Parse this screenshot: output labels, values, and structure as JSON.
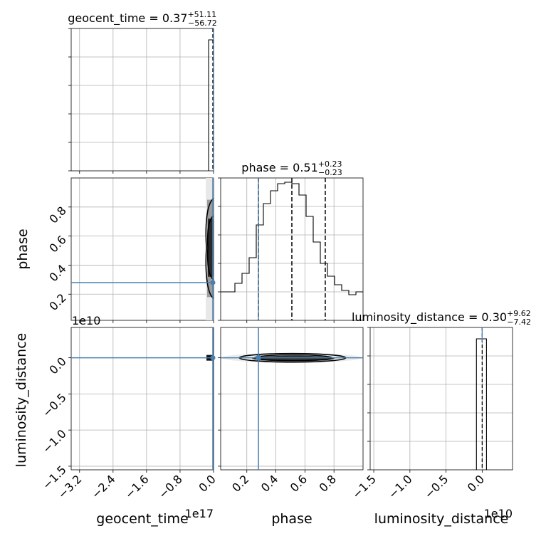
{
  "chart_data": {
    "type": "corner",
    "parameters": [
      "geocent_time",
      "phase",
      "luminosity_distance"
    ],
    "titles": [
      {
        "param": "geocent_time",
        "text": "geocent_time = 0.37",
        "plus": "+51.11",
        "minus": "−56.72"
      },
      {
        "param": "phase",
        "text": "phase = 0.51",
        "plus": "+0.23",
        "minus": "−0.23"
      },
      {
        "param": "luminosity_distance",
        "text": "luminosity_distance = 0.30",
        "plus": "+9.62",
        "minus": "−7.42"
      }
    ],
    "axis_labels": {
      "x": [
        "geocent_time",
        "phase",
        "luminosity_distance"
      ],
      "y": [
        "phase",
        "luminosity_distance"
      ]
    },
    "offset_labels": {
      "geocent_time_x": "1e17",
      "luminosity_distance_y": "1e10",
      "luminosity_distance_x": "1e10"
    },
    "ranges": {
      "geocent_time": [
        -3.4,
        0.0
      ],
      "phase": [
        0.02,
        1.0
      ],
      "luminosity_distance": [
        -1.55,
        0.42
      ]
    },
    "ticks": {
      "geocent_time": [
        "−3.2",
        "−2.4",
        "−1.6",
        "−0.8",
        "0.0"
      ],
      "phase": [
        "0.2",
        "0.4",
        "0.6",
        "0.8"
      ],
      "luminosity_distance": [
        "−1.5",
        "−1.0",
        "−0.5",
        "0.0"
      ]
    },
    "tick_values": {
      "geocent_time": [
        -3.2,
        -2.4,
        -1.6,
        -0.8,
        0.0
      ],
      "phase": [
        0.2,
        0.4,
        0.6,
        0.8
      ],
      "luminosity_distance": [
        -1.5,
        -1.0,
        -0.5,
        0.0
      ]
    },
    "truths": {
      "phase": 0.28,
      "geocent_time": 0.0,
      "luminosity_distance": 0.0
    },
    "quantiles": {
      "geocent_time": [
        -0.0006,
        0.0,
        0.0005
      ],
      "phase": [
        0.28,
        0.51,
        0.74
      ],
      "luminosity_distance": [
        -0.007,
        0.0,
        0.01
      ]
    },
    "phase_histogram": {
      "bin_edges": [
        0.02,
        0.069,
        0.118,
        0.167,
        0.216,
        0.265,
        0.314,
        0.363,
        0.412,
        0.461,
        0.51,
        0.559,
        0.608,
        0.657,
        0.706,
        0.755,
        0.804,
        0.853,
        0.902,
        0.951,
        1.0
      ],
      "counts": [
        0.2,
        0.2,
        0.26,
        0.33,
        0.44,
        0.67,
        0.82,
        0.91,
        0.96,
        0.97,
        0.96,
        0.88,
        0.73,
        0.55,
        0.4,
        0.31,
        0.25,
        0.21,
        0.18,
        0.2
      ]
    },
    "geocent_time_histogram": {
      "bin_edges": [
        -0.05,
        0.0
      ],
      "counts": [
        0.92
      ]
    },
    "luminosity_distance_histogram": {
      "bin_edges": [
        -0.04,
        0.03
      ],
      "counts": [
        0.92
      ]
    },
    "grid": true
  }
}
